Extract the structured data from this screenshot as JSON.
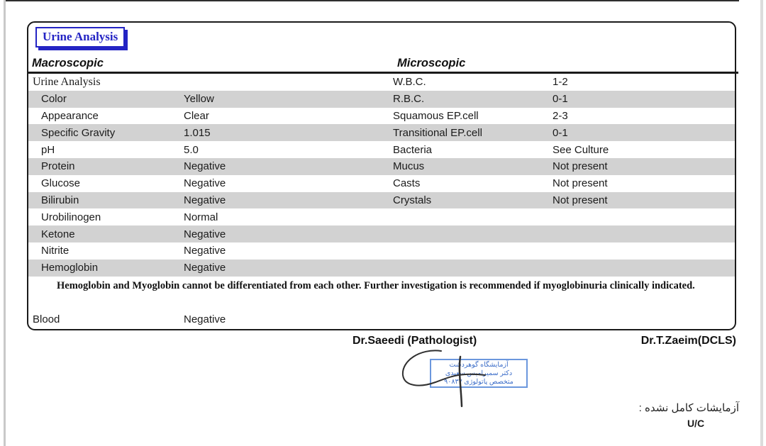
{
  "report": {
    "title": "Urine Analysis"
  },
  "macroscopic": {
    "header": "Macroscopic"
  },
  "microscopic": {
    "header": "Microscopic"
  },
  "table": {
    "rows": [
      {
        "left_label": "Urine Analysis",
        "left_value": "",
        "right_label": "W.B.C.",
        "right_value": "1-2",
        "striped": false,
        "indent": false,
        "serif": true
      },
      {
        "left_label": "Color",
        "left_value": "Yellow",
        "right_label": "R.B.C.",
        "right_value": "0-1",
        "striped": true,
        "indent": true,
        "serif": false
      },
      {
        "left_label": "Appearance",
        "left_value": "Clear",
        "right_label": "Squamous EP.cell",
        "right_value": "2-3",
        "striped": false,
        "indent": true,
        "serif": false
      },
      {
        "left_label": "Specific Gravity",
        "left_value": "1.015",
        "right_label": "Transitional EP.cell",
        "right_value": "0-1",
        "striped": true,
        "indent": true,
        "serif": false
      },
      {
        "left_label": "pH",
        "left_value": "5.0",
        "right_label": "Bacteria",
        "right_value": "See Culture",
        "striped": false,
        "indent": true,
        "serif": false
      },
      {
        "left_label": "Protein",
        "left_value": "Negative",
        "right_label": "Mucus",
        "right_value": "Not present",
        "striped": true,
        "indent": true,
        "serif": false
      },
      {
        "left_label": "Glucose",
        "left_value": "Negative",
        "right_label": "Casts",
        "right_value": "Not present",
        "striped": false,
        "indent": true,
        "serif": false
      },
      {
        "left_label": "Bilirubin",
        "left_value": "Negative",
        "right_label": "Crystals",
        "right_value": "Not present",
        "striped": true,
        "indent": true,
        "serif": false
      },
      {
        "left_label": "Urobilinogen",
        "left_value": "Normal",
        "right_label": "",
        "right_value": "",
        "striped": false,
        "indent": true,
        "serif": false
      },
      {
        "left_label": "Ketone",
        "left_value": "Negative",
        "right_label": "",
        "right_value": "",
        "striped": true,
        "indent": true,
        "serif": false
      },
      {
        "left_label": "Nitrite",
        "left_value": "Negative",
        "right_label": "",
        "right_value": "",
        "striped": false,
        "indent": true,
        "serif": false
      },
      {
        "left_label": "Hemoglobin",
        "left_value": "Negative",
        "right_label": "",
        "right_value": "",
        "striped": true,
        "indent": true,
        "serif": false
      }
    ]
  },
  "note": {
    "text": "Hemoglobin and Myoglobin cannot be differentiated from each other. Further investigation is recommended if myoglobinuria clinically indicated."
  },
  "blood": {
    "label": "Blood",
    "value": "Negative"
  },
  "signatures": {
    "pathologist": "Dr.Saeedi (Pathologist)",
    "dcls": "Dr.T.Zaeim(DCLS)"
  },
  "stamp": {
    "line1": "آزمایشگاه گوهردشت",
    "line2": "دکتر سمیرامیس سعیدی",
    "line3": "متخصص پاتولوژی ۹۰۸۳۷"
  },
  "footer": {
    "incomplete_note": "آزمایشات کامل نشده :",
    "code": "U/C"
  },
  "colors": {
    "accent_blue": "#2424c4",
    "stripe_gray": "#d2d2d2",
    "stamp_blue": "#3a6cc8",
    "border_black": "#1a1a1a"
  }
}
